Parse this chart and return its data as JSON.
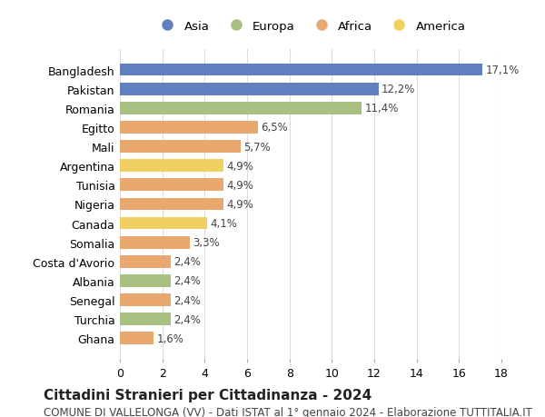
{
  "categories": [
    "Bangladesh",
    "Pakistan",
    "Romania",
    "Egitto",
    "Mali",
    "Argentina",
    "Tunisia",
    "Nigeria",
    "Canada",
    "Somalia",
    "Costa d'Avorio",
    "Albania",
    "Senegal",
    "Turchia",
    "Ghana"
  ],
  "values": [
    17.1,
    12.2,
    11.4,
    6.5,
    5.7,
    4.9,
    4.9,
    4.9,
    4.1,
    3.3,
    2.4,
    2.4,
    2.4,
    2.4,
    1.6
  ],
  "labels": [
    "17,1%",
    "12,2%",
    "11,4%",
    "6,5%",
    "5,7%",
    "4,9%",
    "4,9%",
    "4,9%",
    "4,1%",
    "3,3%",
    "2,4%",
    "2,4%",
    "2,4%",
    "2,4%",
    "1,6%"
  ],
  "continents": [
    "Asia",
    "Asia",
    "Europa",
    "Africa",
    "Africa",
    "America",
    "Africa",
    "Africa",
    "America",
    "Africa",
    "Africa",
    "Europa",
    "Africa",
    "Europa",
    "Africa"
  ],
  "colors": {
    "Asia": "#6080C0",
    "Europa": "#A8C080",
    "Africa": "#E8A870",
    "America": "#F0D060"
  },
  "legend_order": [
    "Asia",
    "Europa",
    "Africa",
    "America"
  ],
  "title": "Cittadini Stranieri per Cittadinanza - 2024",
  "subtitle": "COMUNE DI VALLELONGA (VV) - Dati ISTAT al 1° gennaio 2024 - Elaborazione TUTTITALIA.IT",
  "xlim": [
    0,
    18
  ],
  "xticks": [
    0,
    2,
    4,
    6,
    8,
    10,
    12,
    14,
    16,
    18
  ],
  "background_color": "#ffffff",
  "grid_color": "#dddddd",
  "bar_height": 0.65,
  "label_fontsize": 8.5,
  "tick_fontsize": 9,
  "title_fontsize": 11,
  "subtitle_fontsize": 8.5
}
